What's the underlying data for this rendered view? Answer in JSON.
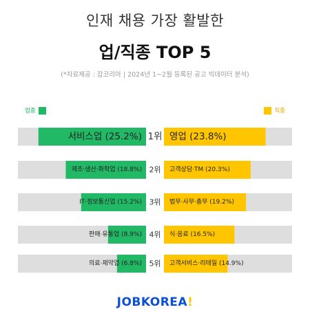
{
  "header": {
    "title_line1": "인재 채용 가장 활발한",
    "title_line2": "업/직종 TOP 5",
    "source": "(*자료제공 : 잡코리아 | 2024년 1~2월 등록된 공고 빅데이터 분석)"
  },
  "legend": {
    "left_label": "업종",
    "right_label": "직종"
  },
  "colors": {
    "industry": "#21b866",
    "job": "#ffc600",
    "track": "#dedede"
  },
  "chart_data": {
    "type": "bar",
    "orientation": "horizontal-butterfly",
    "categories": [
      "1위",
      "2위",
      "3위",
      "4위",
      "5위"
    ],
    "series": [
      {
        "name": "업종",
        "labels": [
          "서비스업",
          "제조·생산·화학업",
          "IT·정보통신업",
          "판매·유통업",
          "의료·제약업"
        ],
        "values": [
          25.2,
          18.8,
          15.2,
          8.9,
          6.8
        ],
        "display": [
          "서비스업 (25.2%)",
          "제조·생산·화학업 (18.8%)",
          "IT·정보통신업 (15.2%)",
          "판매·유통업 (8.9%)",
          "의료·제약업 (6.8%)"
        ]
      },
      {
        "name": "직종",
        "labels": [
          "영업",
          "고객상담·TM",
          "법무·사무·총무",
          "식·음료",
          "고객서비스·리테일"
        ],
        "values": [
          23.8,
          20.3,
          19.2,
          16.5,
          14.9
        ],
        "display": [
          "영업 (23.8%)",
          "고객상담·TM (20.3%)",
          "법무·사무·총무 (19.2%)",
          "식·음료 (16.5%)",
          "고객서비스·리테일 (14.9%)"
        ]
      }
    ],
    "xlim": [
      0,
      30
    ]
  },
  "footer": {
    "logo_main": "JOBKOREA",
    "logo_accent": "!"
  }
}
